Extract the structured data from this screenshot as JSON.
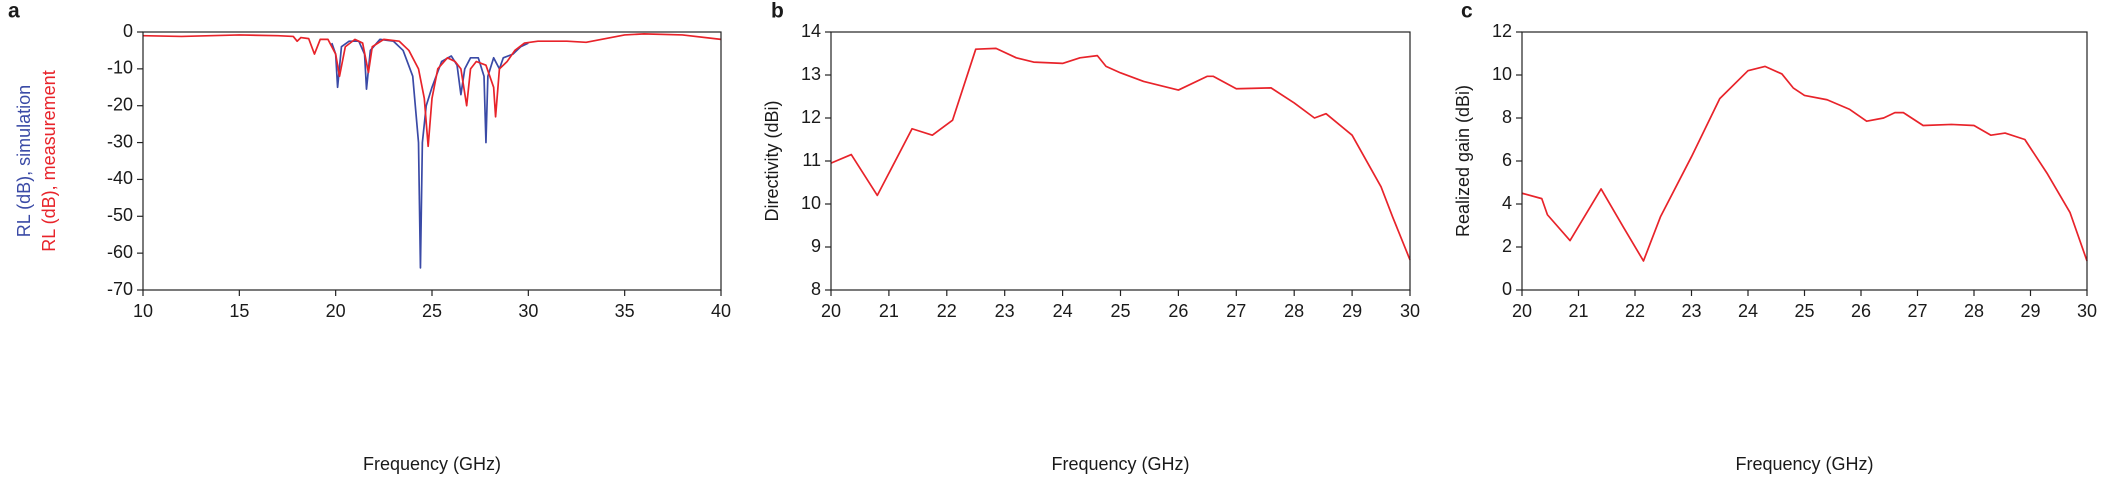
{
  "chart_data": [
    {
      "type": "line",
      "panel_label": "a",
      "xlabel": "Frequency (GHz)",
      "xlim": [
        10,
        40
      ],
      "xticks": [
        10,
        15,
        20,
        25,
        30,
        35,
        40
      ],
      "ylim": [
        -70,
        0
      ],
      "yticks": [
        0,
        -10,
        -20,
        -30,
        -40,
        -50,
        -60,
        -70
      ],
      "series": [
        {
          "name": "RL (dB), simulation",
          "color": "#3a4aa6",
          "x": [
            19.8,
            20.0,
            20.1,
            20.3,
            20.7,
            21.2,
            21.5,
            21.6,
            21.8,
            22.3,
            23.0,
            23.5,
            24.0,
            24.3,
            24.4,
            24.5,
            24.7,
            25.0,
            25.5,
            26.0,
            26.3,
            26.5,
            26.7,
            27.0,
            27.4,
            27.7,
            27.8,
            27.9,
            28.2,
            28.5,
            28.7,
            29.2,
            29.6,
            30.0
          ],
          "values": [
            -3,
            -6,
            -15,
            -4,
            -2.5,
            -2.5,
            -6,
            -15.5,
            -5,
            -2,
            -2.5,
            -5,
            -12,
            -30,
            -64,
            -30,
            -20,
            -15,
            -8,
            -6.5,
            -9,
            -17,
            -10,
            -7,
            -7,
            -12,
            -30,
            -12,
            -7,
            -10,
            -7,
            -6,
            -4,
            -3
          ]
        },
        {
          "name": "RL (dB), measurement",
          "color": "#e8232a",
          "x": [
            10,
            12,
            15,
            17,
            17.8,
            18.0,
            18.2,
            18.6,
            18.9,
            19.2,
            19.6,
            20.0,
            20.2,
            20.5,
            21.0,
            21.4,
            21.7,
            21.9,
            22.5,
            23.3,
            23.8,
            24.3,
            24.6,
            24.8,
            25.0,
            25.3,
            25.8,
            26.2,
            26.5,
            26.8,
            27.0,
            27.3,
            27.8,
            28.2,
            28.3,
            28.5,
            28.9,
            29.3,
            29.8,
            30.5,
            32,
            33,
            35,
            36,
            38,
            40
          ],
          "values": [
            -1,
            -1.2,
            -0.8,
            -1,
            -1.2,
            -2.5,
            -1.5,
            -1.8,
            -6,
            -2,
            -2,
            -6,
            -12,
            -4,
            -2,
            -3,
            -11,
            -4,
            -2,
            -2.5,
            -5,
            -10,
            -18,
            -31,
            -18,
            -10,
            -7,
            -8,
            -10,
            -20,
            -10,
            -8,
            -9,
            -15,
            -23,
            -10,
            -8,
            -5,
            -3,
            -2.5,
            -2.5,
            -2.8,
            -0.8,
            -0.5,
            -0.8,
            -2
          ]
        }
      ]
    },
    {
      "type": "line",
      "panel_label": "b",
      "xlabel": "Frequency (GHz)",
      "ylabel": "Directivity (dBi)",
      "xlim": [
        20,
        30
      ],
      "xticks": [
        20,
        21,
        22,
        23,
        24,
        25,
        26,
        27,
        28,
        29,
        30
      ],
      "ylim": [
        8,
        14
      ],
      "yticks": [
        8,
        9,
        10,
        11,
        12,
        13,
        14
      ],
      "series": [
        {
          "color": "#e8232a",
          "x": [
            20,
            20.35,
            20.8,
            21.4,
            21.75,
            22.1,
            22.5,
            22.85,
            23.2,
            23.5,
            24.0,
            24.3,
            24.6,
            24.75,
            25.0,
            25.4,
            26.0,
            26.5,
            26.6,
            27.0,
            27.6,
            28.0,
            28.35,
            28.55,
            29.0,
            29.5,
            29.7,
            30
          ],
          "values": [
            10.95,
            11.15,
            10.2,
            11.75,
            11.6,
            11.95,
            13.6,
            13.62,
            13.4,
            13.3,
            13.27,
            13.4,
            13.45,
            13.2,
            13.05,
            12.85,
            12.65,
            12.97,
            12.97,
            12.68,
            12.7,
            12.35,
            12.0,
            12.1,
            11.6,
            10.4,
            9.7,
            8.7
          ]
        }
      ]
    },
    {
      "type": "line",
      "panel_label": "c",
      "xlabel": "Frequency (GHz)",
      "ylabel": "Realized gain (dBi)",
      "xlim": [
        20,
        30
      ],
      "xticks": [
        20,
        21,
        22,
        23,
        24,
        25,
        26,
        27,
        28,
        29,
        30
      ],
      "ylim": [
        0,
        12
      ],
      "yticks": [
        0,
        2,
        4,
        6,
        8,
        10,
        12
      ],
      "series": [
        {
          "color": "#e8232a",
          "x": [
            20,
            20.35,
            20.45,
            20.85,
            21.4,
            21.8,
            22.15,
            22.45,
            23.0,
            23.5,
            24.0,
            24.3,
            24.6,
            24.8,
            25.0,
            25.4,
            25.8,
            26.1,
            26.4,
            26.6,
            26.75,
            27.1,
            27.6,
            28.0,
            28.3,
            28.55,
            28.9,
            29.3,
            29.7,
            30
          ],
          "values": [
            4.5,
            4.25,
            3.5,
            2.3,
            4.7,
            2.9,
            1.35,
            3.4,
            6.2,
            8.9,
            10.2,
            10.4,
            10.05,
            9.4,
            9.05,
            8.85,
            8.4,
            7.85,
            8.0,
            8.25,
            8.25,
            7.65,
            7.7,
            7.65,
            7.2,
            7.3,
            7.0,
            5.4,
            3.6,
            1.35
          ]
        }
      ]
    }
  ]
}
